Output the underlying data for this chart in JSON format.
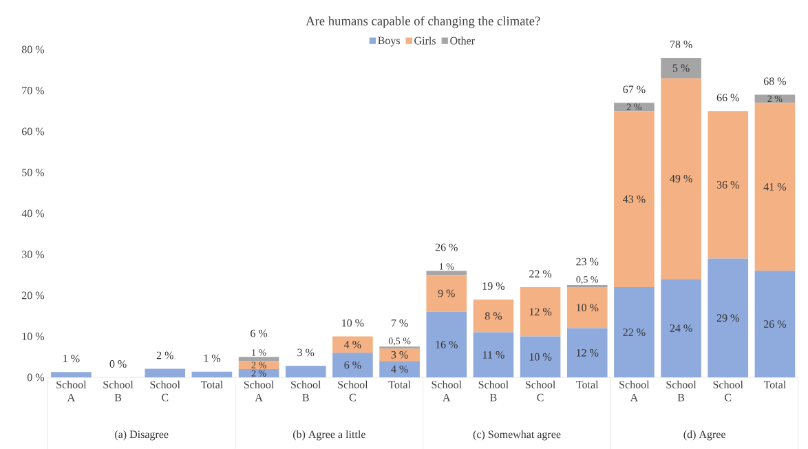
{
  "chart_data": {
    "type": "bar",
    "stacked": true,
    "title": "Are humans capable of changing the climate?",
    "categories": [
      "School A",
      "School B",
      "School C",
      "Total",
      "School A",
      "School B",
      "School C",
      "Total",
      "School A",
      "School B",
      "School C",
      "Total",
      "School A",
      "School B",
      "School C",
      "Total"
    ],
    "annotations": [
      "(a) Disagree",
      "(b) Agree a little",
      "(c) Somewhat agree",
      "(d) Agree"
    ],
    "series": [
      {
        "name": "Boys",
        "color": "#8faadc",
        "values": [
          1.3,
          0,
          2.1,
          1.4,
          2,
          2.8,
          6,
          4,
          16,
          11,
          10,
          12,
          22,
          24,
          29,
          26
        ],
        "value_labels": [
          null,
          null,
          null,
          null,
          "2 %",
          null,
          "6 %",
          "4 %",
          "16 %",
          "11 %",
          "10 %",
          "12 %",
          "22 %",
          "24 %",
          "29 %",
          "26 %"
        ]
      },
      {
        "name": "Girls",
        "color": "#f4b183",
        "values": [
          0,
          0,
          0,
          0,
          2,
          0,
          4,
          3,
          9,
          8,
          12,
          10,
          43,
          49,
          36,
          41
        ],
        "value_labels": [
          null,
          null,
          null,
          null,
          "2 %",
          null,
          "4 %",
          "3 %",
          "9 %",
          "8 %",
          "12 %",
          "10 %",
          "43 %",
          "49 %",
          "36 %",
          "41 %"
        ]
      },
      {
        "name": "Other",
        "color": "#a5a5a5",
        "values": [
          0,
          0,
          0,
          0,
          1,
          0,
          0,
          0.5,
          1,
          0,
          0,
          0.5,
          2,
          5,
          0,
          2
        ],
        "value_labels": [
          null,
          null,
          null,
          null,
          "1 %",
          null,
          null,
          "0,5 %",
          "1 %",
          null,
          null,
          "0,5 %",
          "2 %",
          "5 %",
          null,
          "2 %"
        ]
      }
    ],
    "totals": [
      "1 %",
      "0 %",
      "2 %",
      "1 %",
      "6 %",
      "3 %",
      "10 %",
      "7 %",
      "26 %",
      "19 %",
      "22 %",
      "23 %",
      "67 %",
      "78 %",
      "66 %",
      "68 %"
    ],
    "ylim": [
      0,
      80
    ],
    "yticks": [
      {
        "value": 0,
        "label": "0 %"
      },
      {
        "value": 10,
        "label": "10 %"
      },
      {
        "value": 20,
        "label": "20 %"
      },
      {
        "value": 30,
        "label": "30 %"
      },
      {
        "value": 40,
        "label": "40 %"
      },
      {
        "value": 50,
        "label": "50 %"
      },
      {
        "value": 60,
        "label": "60 %"
      },
      {
        "value": 70,
        "label": "70 %"
      },
      {
        "value": 80,
        "label": "80 %"
      }
    ],
    "grid": false,
    "legend": "top"
  }
}
